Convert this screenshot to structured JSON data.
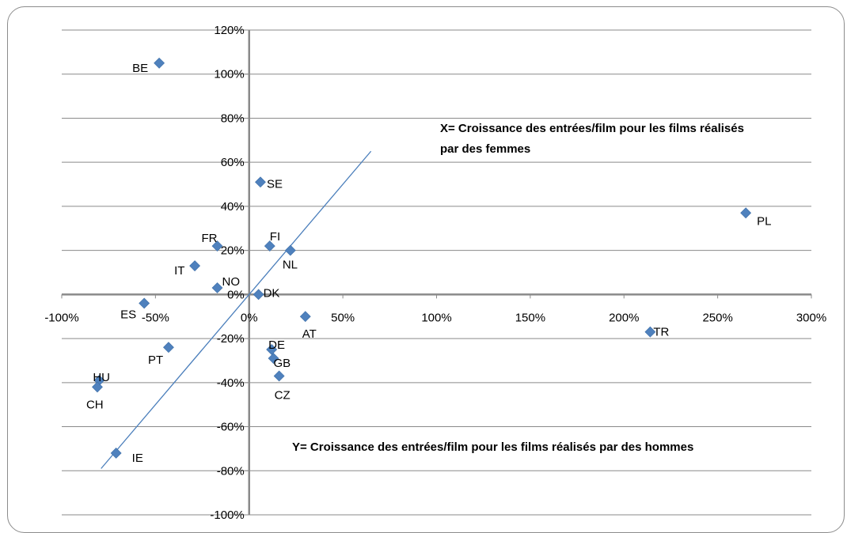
{
  "chart_data": {
    "type": "scatter",
    "xlim": [
      -1.0,
      3.0
    ],
    "ylim": [
      -1.0,
      1.2
    ],
    "x_ticks": [
      -1.0,
      -0.5,
      0,
      0.5,
      1.0,
      1.5,
      2.0,
      2.5,
      3.0
    ],
    "x_tick_labels": [
      "-100%",
      "-50%",
      "0%",
      "50%",
      "100%",
      "150%",
      "200%",
      "250%",
      "300%"
    ],
    "y_ticks": [
      -1.0,
      -0.8,
      -0.6,
      -0.4,
      -0.2,
      0,
      0.2,
      0.4,
      0.6,
      0.8,
      1.0,
      1.2
    ],
    "y_tick_labels": [
      "-100%",
      "-80%",
      "-60%",
      "-40%",
      "-20%",
      "0%",
      "20%",
      "40%",
      "60%",
      "80%",
      "100%",
      "120%"
    ],
    "grid": "horizontal",
    "marker_color": "#4f81bd",
    "line_color": "#4a7ebb",
    "points": [
      {
        "label": "BE",
        "x": -0.48,
        "y": 1.05
      },
      {
        "label": "SE",
        "x": 0.06,
        "y": 0.51
      },
      {
        "label": "PL",
        "x": 2.65,
        "y": 0.37
      },
      {
        "label": "FR",
        "x": -0.17,
        "y": 0.22
      },
      {
        "label": "FI",
        "x": 0.11,
        "y": 0.22
      },
      {
        "label": "NL",
        "x": 0.22,
        "y": 0.2
      },
      {
        "label": "IT",
        "x": -0.29,
        "y": 0.13
      },
      {
        "label": "NO",
        "x": -0.17,
        "y": 0.03
      },
      {
        "label": "DK",
        "x": 0.05,
        "y": 0.0
      },
      {
        "label": "ES",
        "x": -0.56,
        "y": -0.04
      },
      {
        "label": "AT",
        "x": 0.3,
        "y": -0.1
      },
      {
        "label": "TR",
        "x": 2.14,
        "y": -0.17
      },
      {
        "label": "PT",
        "x": -0.43,
        "y": -0.24
      },
      {
        "label": "DE",
        "x": 0.12,
        "y": -0.25
      },
      {
        "label": "GB",
        "x": 0.13,
        "y": -0.29
      },
      {
        "label": "CZ",
        "x": 0.16,
        "y": -0.37
      },
      {
        "label": "HU",
        "x": -0.8,
        "y": -0.39
      },
      {
        "label": "CH",
        "x": -0.81,
        "y": -0.42
      },
      {
        "label": "IE",
        "x": -0.71,
        "y": -0.72
      }
    ],
    "reference_line": {
      "x": [
        -0.79,
        0.65
      ],
      "y": [
        -0.79,
        0.65
      ]
    },
    "annotations": {
      "x_note": [
        "X= Croissance des entrées/film pour les films réalisés",
        "par des femmes"
      ],
      "y_note": "Y= Croissance des entrées/film pour les films réalisés par des hommes"
    }
  }
}
